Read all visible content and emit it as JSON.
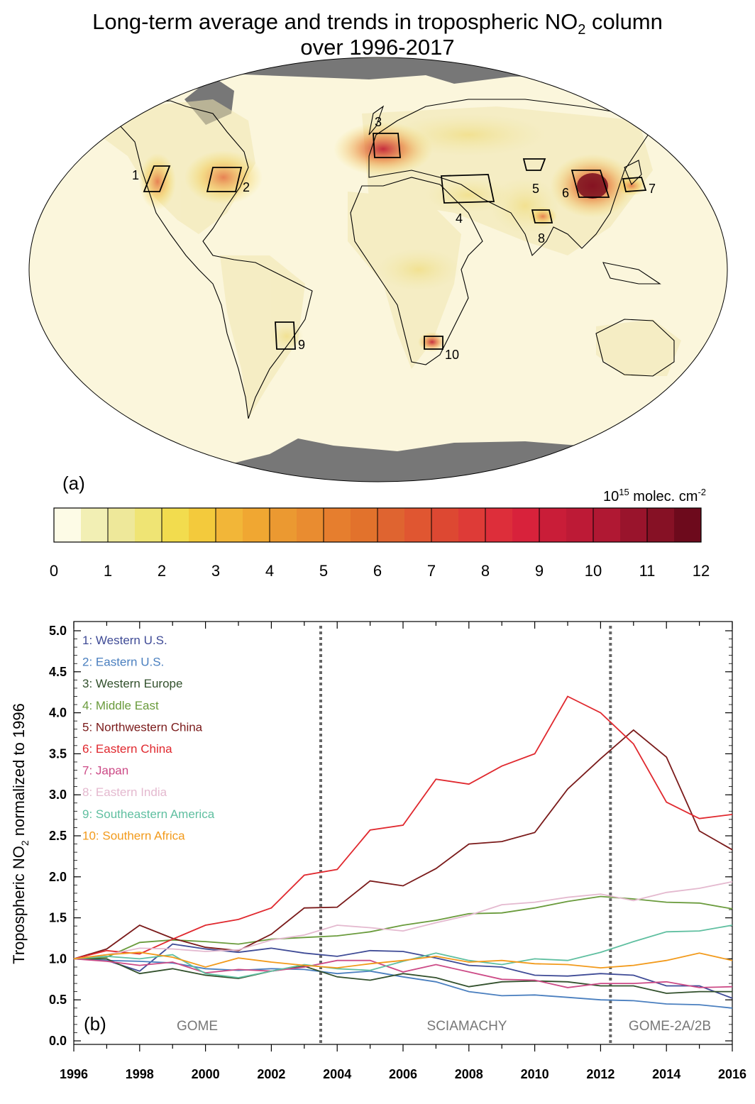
{
  "title": {
    "line1_prefix": "Long-term average and trends in tropospheric NO",
    "line1_sub": "2",
    "line1_suffix": " column",
    "line2": "over 1996-2017"
  },
  "map": {
    "panel_label": "(a)",
    "regions": [
      {
        "id": "1",
        "name": "Western U.S."
      },
      {
        "id": "2",
        "name": "Eastern U.S."
      },
      {
        "id": "3",
        "name": "Western Europe"
      },
      {
        "id": "4",
        "name": "Middle East"
      },
      {
        "id": "5",
        "name": "Northwestern China"
      },
      {
        "id": "6",
        "name": "Eastern China"
      },
      {
        "id": "7",
        "name": "Japan"
      },
      {
        "id": "8",
        "name": "Eastern India"
      },
      {
        "id": "9",
        "name": "Southeastern America"
      },
      {
        "id": "10",
        "name": "Southern Africa"
      }
    ],
    "colors": {
      "ocean_land_bg": "#fbf6dc",
      "polar_missing": "#777777",
      "coast": "#000000"
    }
  },
  "colorbar": {
    "unit_base": "10",
    "unit_exp": "15",
    "unit_mid": " molec. cm",
    "unit_exp2": "-2",
    "ticks": [
      "0",
      "1",
      "2",
      "3",
      "4",
      "5",
      "6",
      "7",
      "8",
      "9",
      "10",
      "11",
      "12"
    ],
    "colors": [
      "#fdfbe6",
      "#f2efb4",
      "#eee89a",
      "#efe474",
      "#f2dc4e",
      "#f3ca3c",
      "#f2b638",
      "#f0a732",
      "#eb9931",
      "#e98c30",
      "#e67e2e",
      "#e2722c",
      "#df6430",
      "#e05631",
      "#dd4832",
      "#de3b37",
      "#dd2e3a",
      "#d8223b",
      "#c91d38",
      "#bd1a36",
      "#b01833",
      "#99142c",
      "#861125",
      "#6d0a1c"
    ]
  },
  "chart_data": {
    "type": "line",
    "panel_label": "(b)",
    "ylabel_prefix": "Tropospheric NO",
    "ylabel_sub": "2",
    "ylabel_suffix": " normalized to 1996",
    "xlim": [
      1996,
      2016
    ],
    "ylim": [
      0,
      5
    ],
    "x_ticks": [
      "1996",
      "1998",
      "2000",
      "2002",
      "2004",
      "2006",
      "2008",
      "2010",
      "2012",
      "2014",
      "2016"
    ],
    "y_ticks": [
      "0.0",
      "0.5",
      "1.0",
      "1.5",
      "2.0",
      "2.5",
      "3.0",
      "3.5",
      "4.0",
      "4.5",
      "5.0"
    ],
    "instrument_breaks": [
      2003.5,
      2012.3
    ],
    "instruments": [
      {
        "name": "GOME",
        "center": 1995.95
      },
      {
        "name": "SCIAMACHY",
        "center": 2007.9
      },
      {
        "name": "GOME-2A/2B",
        "center": 2014.2
      }
    ],
    "x": [
      1996,
      1997,
      1998,
      1999,
      2000,
      2001,
      2002,
      2003,
      2004,
      2005,
      2006,
      2007,
      2008,
      2009,
      2010,
      2011,
      2012,
      2013,
      2014,
      2015,
      2016
    ],
    "series": [
      {
        "name": "1: Western U.S.",
        "color": "#3f4b96",
        "values": [
          1.0,
          0.98,
          0.85,
          1.18,
          1.12,
          1.08,
          1.13,
          1.07,
          1.03,
          1.1,
          1.09,
          1.01,
          0.92,
          0.9,
          0.8,
          0.79,
          0.82,
          0.8,
          0.67,
          0.67,
          0.52
        ]
      },
      {
        "name": "2: Eastern U.S.",
        "color": "#4a7fbf",
        "values": [
          1.0,
          0.98,
          0.97,
          0.95,
          0.88,
          0.86,
          0.88,
          0.87,
          0.82,
          0.85,
          0.78,
          0.72,
          0.6,
          0.55,
          0.56,
          0.53,
          0.5,
          0.49,
          0.45,
          0.44,
          0.4
        ]
      },
      {
        "name": "3: Western Europe",
        "color": "#32502c",
        "values": [
          1.0,
          1.0,
          0.82,
          0.88,
          0.8,
          0.76,
          0.85,
          0.91,
          0.78,
          0.74,
          0.82,
          0.77,
          0.66,
          0.72,
          0.73,
          0.72,
          0.67,
          0.67,
          0.58,
          0.6,
          0.6
        ]
      },
      {
        "name": "4: Middle East",
        "color": "#6a9b3c",
        "values": [
          1.0,
          1.02,
          1.2,
          1.23,
          1.21,
          1.18,
          1.24,
          1.26,
          1.28,
          1.33,
          1.41,
          1.47,
          1.55,
          1.56,
          1.62,
          1.7,
          1.76,
          1.73,
          1.69,
          1.68,
          1.61
        ]
      },
      {
        "name": "5: Northwestern China",
        "color": "#7a1a1a",
        "values": [
          1.0,
          1.12,
          1.41,
          1.25,
          1.14,
          1.1,
          1.3,
          1.62,
          1.63,
          1.95,
          1.89,
          2.1,
          2.4,
          2.43,
          2.54,
          3.07,
          3.44,
          3.79,
          3.46,
          2.56,
          2.33
        ]
      },
      {
        "name": "6: Eastern China",
        "color": "#e0282e",
        "values": [
          1.0,
          1.1,
          1.06,
          1.24,
          1.41,
          1.48,
          1.62,
          2.02,
          2.09,
          2.57,
          2.63,
          3.19,
          3.13,
          3.35,
          3.5,
          4.2,
          4.0,
          3.62,
          2.91,
          2.71,
          2.76
        ]
      },
      {
        "name": "7: Japan",
        "color": "#cc4a86",
        "values": [
          1.0,
          0.97,
          0.92,
          0.96,
          0.83,
          0.87,
          0.85,
          0.9,
          0.98,
          0.98,
          0.84,
          0.93,
          0.84,
          0.75,
          0.74,
          0.65,
          0.7,
          0.7,
          0.72,
          0.65,
          0.66
        ]
      },
      {
        "name": "8: Eastern India",
        "color": "#e4b9cf",
        "values": [
          1.0,
          1.05,
          1.13,
          1.12,
          1.09,
          1.11,
          1.23,
          1.29,
          1.41,
          1.38,
          1.34,
          1.44,
          1.53,
          1.66,
          1.69,
          1.75,
          1.79,
          1.71,
          1.81,
          1.86,
          1.94
        ]
      },
      {
        "name": "9: Southeastern America",
        "color": "#5fbfa0",
        "values": [
          1.0,
          1.03,
          1.0,
          1.05,
          0.82,
          0.77,
          0.85,
          0.93,
          0.88,
          0.86,
          0.97,
          1.07,
          0.98,
          0.93,
          1.0,
          0.98,
          1.08,
          1.21,
          1.33,
          1.34,
          1.41
        ]
      },
      {
        "name": "10: Southern Africa",
        "color": "#f29a1b",
        "values": [
          1.0,
          1.05,
          1.08,
          1.02,
          0.9,
          1.01,
          0.96,
          0.92,
          0.89,
          0.94,
          0.98,
          1.03,
          0.96,
          0.98,
          0.94,
          0.93,
          0.89,
          0.92,
          0.98,
          1.07,
          0.98
        ]
      }
    ]
  }
}
